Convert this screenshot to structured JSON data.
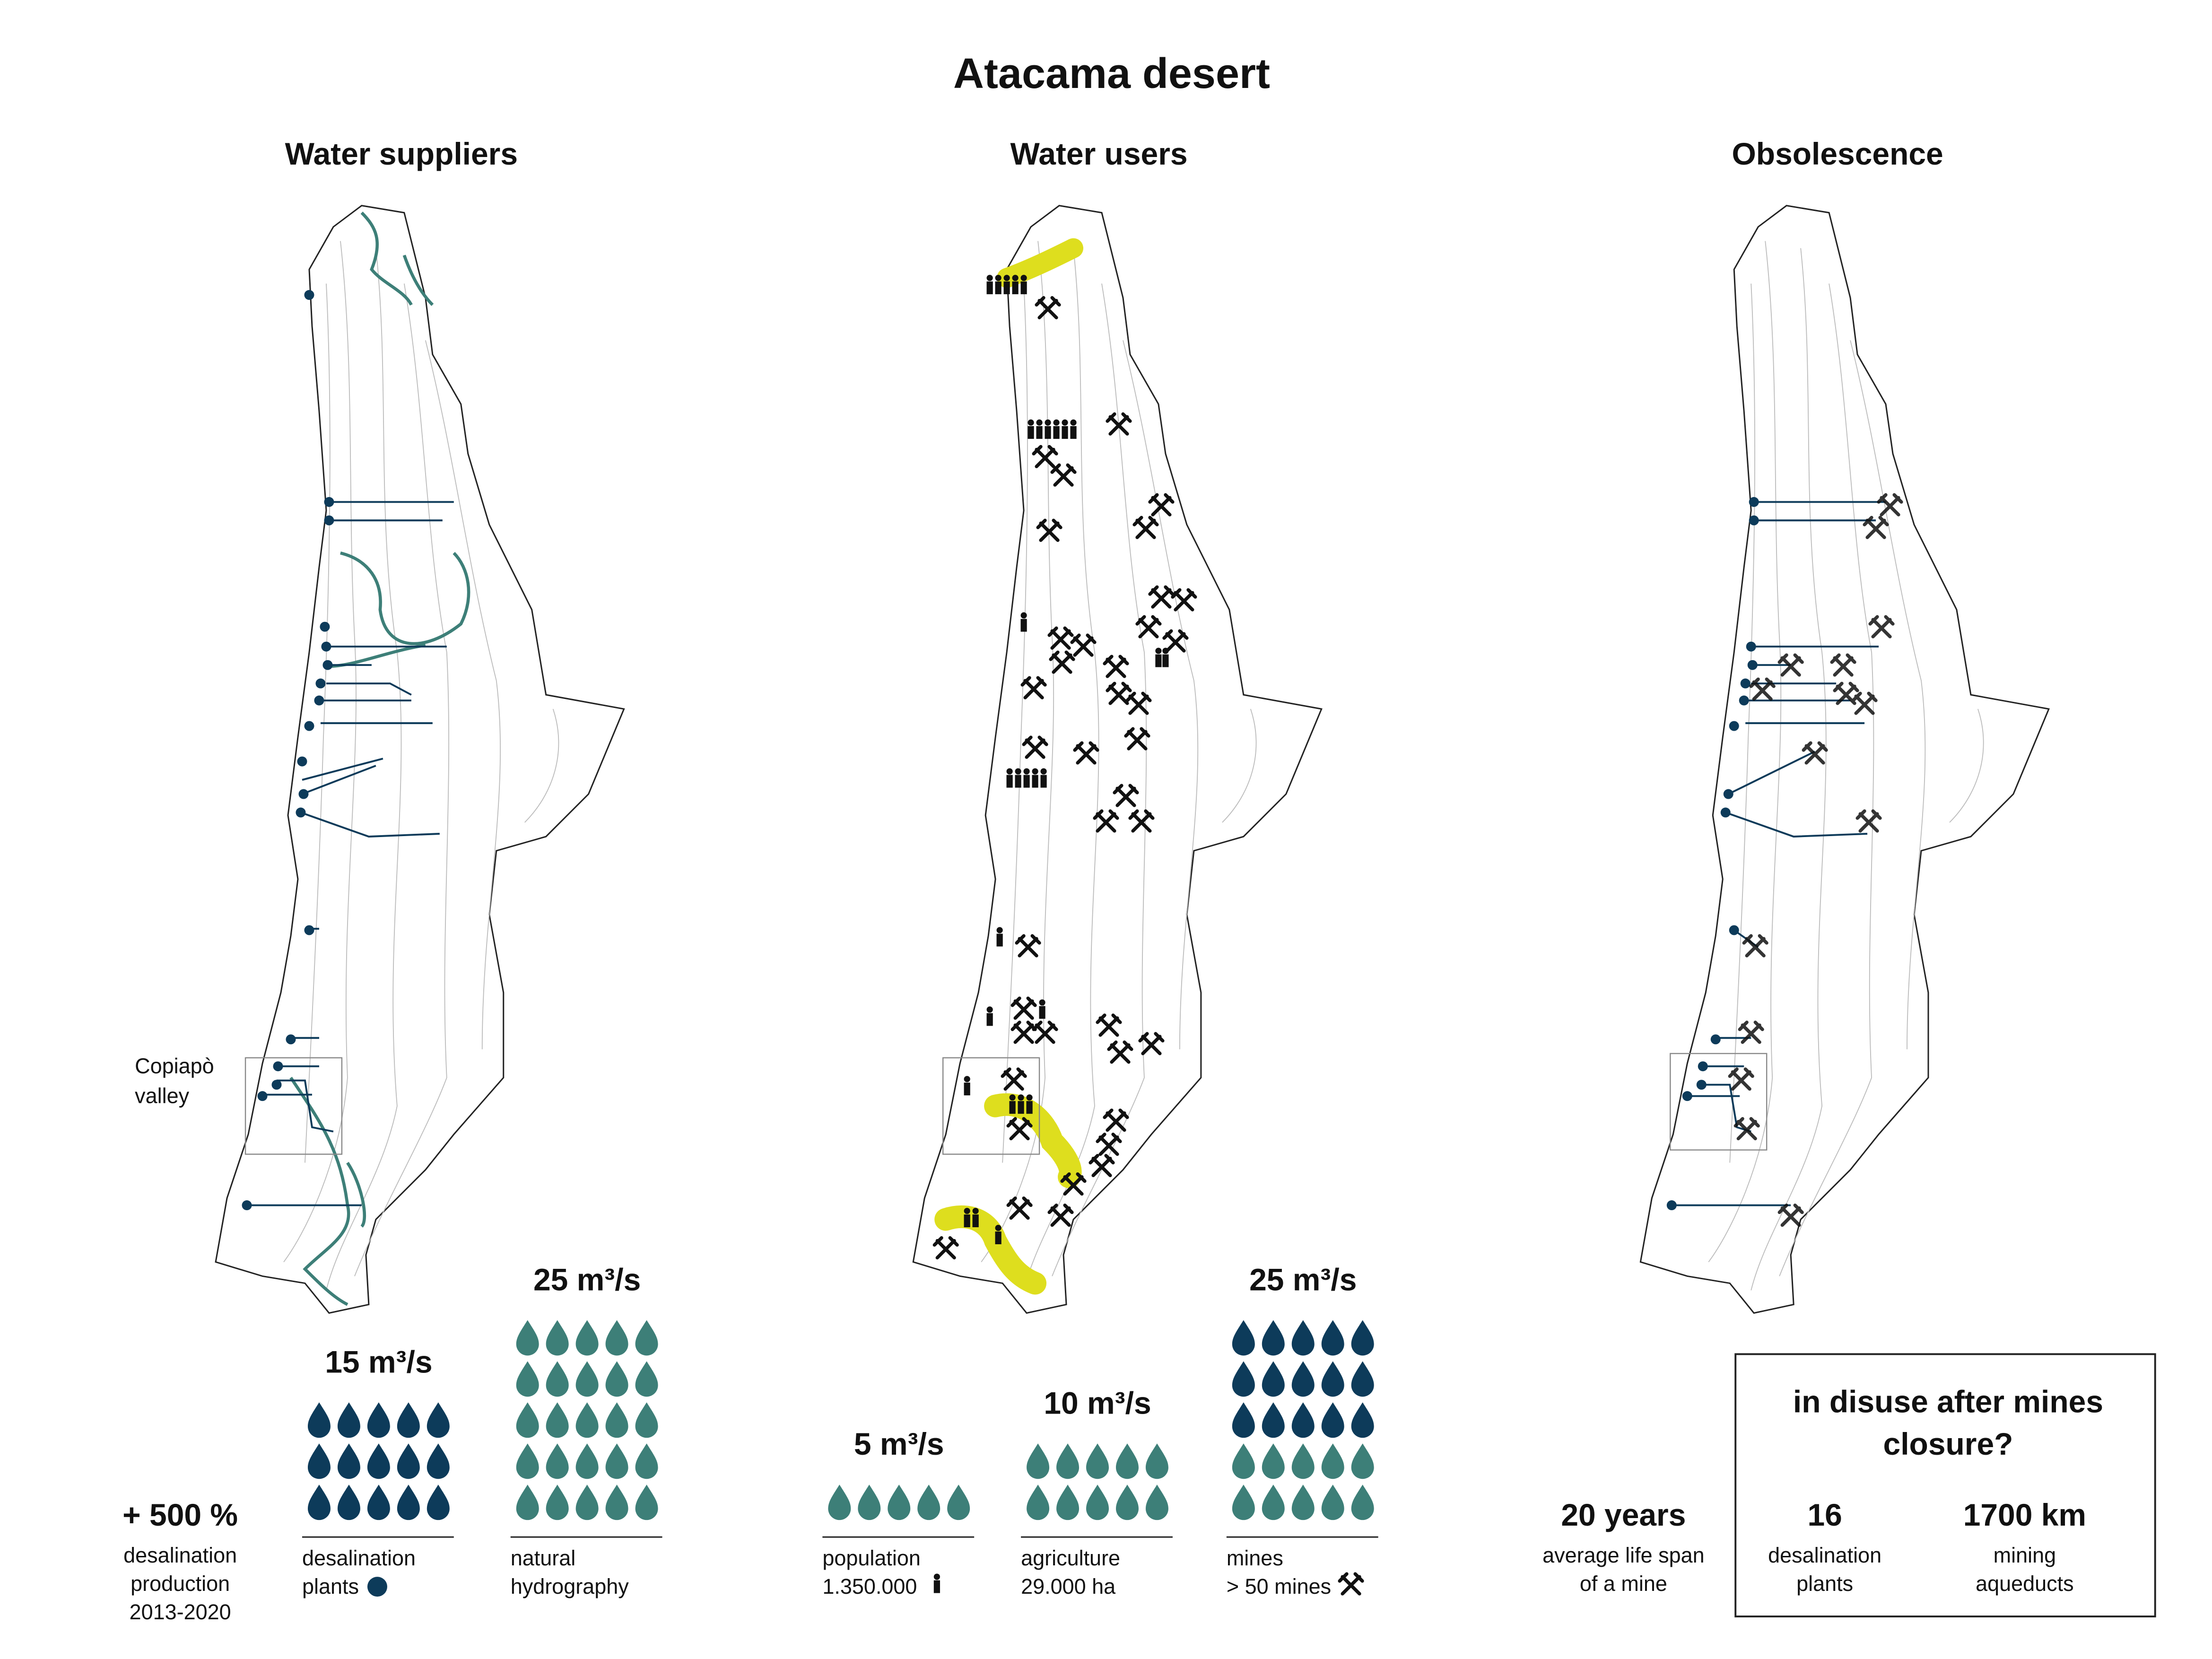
{
  "title": "Atacama desert",
  "sections": [
    "Water suppliers",
    "Water users",
    "Obsolescence"
  ],
  "map_label": [
    "Copiapò",
    "valley"
  ],
  "growth": {
    "value": "+ 500 %",
    "desc": [
      "desalination",
      "production",
      "2013-2020"
    ]
  },
  "suppliers": [
    {
      "value": 15,
      "label": "15 m³/s",
      "color": "#0d3b5a",
      "desc": [
        "desalination",
        "plants"
      ]
    },
    {
      "value": 25,
      "label": "25 m³/s",
      "color": "#3d7f78",
      "desc": [
        "natural",
        "hydrography"
      ]
    }
  ],
  "users": [
    {
      "value": 5,
      "label": "5 m³/s",
      "desc": [
        "population",
        "1.350.000"
      ]
    },
    {
      "value": 10,
      "label": "10 m³/s",
      "desc": [
        "agriculture",
        "29.000 ha"
      ]
    },
    {
      "value": 25,
      "label": "25 m³/s",
      "desc": [
        "mines",
        "> 50 mines"
      ]
    }
  ],
  "obsolescence": {
    "question": [
      "in disuse after mines",
      "closure?"
    ],
    "stats": [
      {
        "value": "20 years",
        "desc": [
          "average life span",
          "of a mine"
        ]
      },
      {
        "value": "16",
        "desc": [
          "desalination",
          "plants"
        ]
      },
      {
        "value": "1700 km",
        "desc": [
          "mining",
          "aqueducts"
        ]
      }
    ]
  }
}
